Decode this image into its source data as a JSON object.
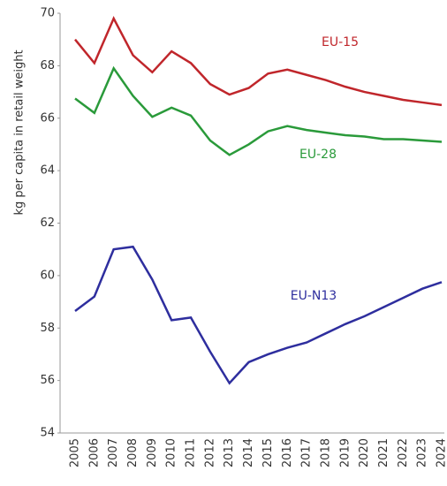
{
  "chart_data": {
    "type": "line",
    "y_label": "kg per capita in retail weight",
    "categories": [
      "2005",
      "2006",
      "2007",
      "2008",
      "2009",
      "2010",
      "2011",
      "2012",
      "2013",
      "2014",
      "2015",
      "2016",
      "2017",
      "2018",
      "2019",
      "2020",
      "2021",
      "2022",
      "2023",
      "2024"
    ],
    "series": [
      {
        "name": "EU-15",
        "color": "#c0262b",
        "values": [
          69.0,
          68.1,
          69.8,
          68.4,
          67.75,
          68.55,
          68.1,
          67.3,
          66.9,
          67.15,
          67.7,
          67.85,
          67.65,
          67.45,
          67.2,
          67.0,
          66.85,
          66.7,
          66.6,
          66.5
        ]
      },
      {
        "name": "EU-28",
        "color": "#2a9a3a",
        "values": [
          66.75,
          66.2,
          67.9,
          66.85,
          66.05,
          66.4,
          66.1,
          65.15,
          64.6,
          65.0,
          65.5,
          65.7,
          65.55,
          65.45,
          65.35,
          65.3,
          65.2,
          65.2,
          65.15,
          65.1
        ]
      },
      {
        "name": "EU-N13",
        "color": "#2e2e9e",
        "values": [
          58.65,
          59.2,
          61.0,
          61.1,
          59.85,
          58.3,
          58.4,
          57.1,
          55.9,
          56.7,
          57.0,
          57.25,
          57.45,
          57.8,
          58.15,
          58.45,
          58.8,
          59.15,
          59.5,
          59.75
        ]
      }
    ],
    "ylim": [
      54,
      70
    ],
    "yticks": [
      54,
      56,
      58,
      60,
      62,
      64,
      66,
      68,
      70
    ],
    "grid": false
  }
}
